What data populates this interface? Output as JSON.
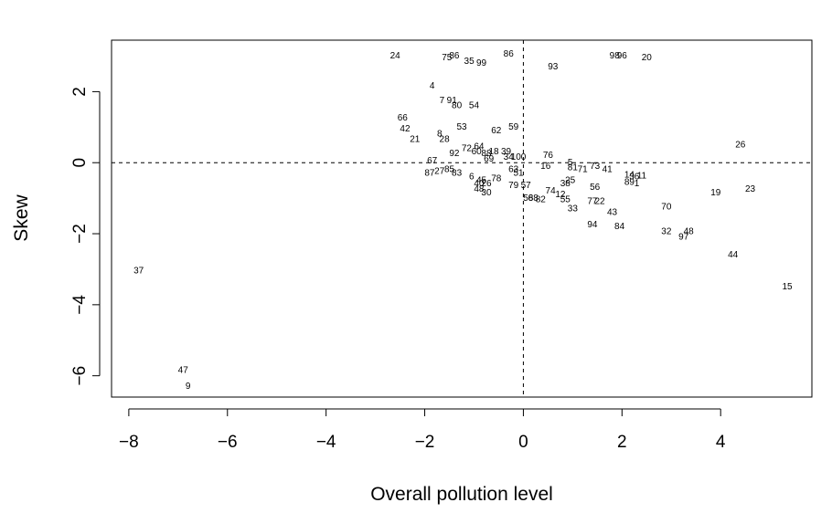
{
  "chart_data": {
    "type": "scatter",
    "title": "",
    "xlabel": "Overall pollution level",
    "ylabel": "Skew",
    "xlim": [
      -8.35,
      5.85
    ],
    "ylim": [
      -6.6,
      3.45
    ],
    "xticks": [
      -8,
      -6,
      -4,
      -2,
      0,
      2,
      4
    ],
    "yticks": [
      -6,
      -4,
      -2,
      0,
      2
    ],
    "xtick_labels": [
      "−8",
      "−6",
      "−4",
      "−2",
      "0",
      "2",
      "4"
    ],
    "ytick_labels": [
      "−6",
      "−4",
      "−2",
      "0",
      "2"
    ],
    "reference_lines": {
      "x": 0,
      "y": 0,
      "style": "dashed"
    },
    "grid": false,
    "legend": "none",
    "points": [
      {
        "label": "24",
        "x": -2.6,
        "y": 3.0
      },
      {
        "label": "75",
        "x": -1.55,
        "y": 2.95
      },
      {
        "label": "86",
        "x": -1.4,
        "y": 3.0
      },
      {
        "label": "35",
        "x": -1.1,
        "y": 2.85
      },
      {
        "label": "99",
        "x": -0.85,
        "y": 2.8
      },
      {
        "label": "86",
        "x": -0.3,
        "y": 3.05
      },
      {
        "label": "93",
        "x": 0.6,
        "y": 2.7
      },
      {
        "label": "98",
        "x": 1.85,
        "y": 3.0
      },
      {
        "label": "96",
        "x": 2.0,
        "y": 3.0
      },
      {
        "label": "20",
        "x": 2.5,
        "y": 2.95
      },
      {
        "label": "4",
        "x": -1.85,
        "y": 2.15
      },
      {
        "label": "7",
        "x": -1.65,
        "y": 1.75
      },
      {
        "label": "91",
        "x": -1.45,
        "y": 1.75
      },
      {
        "label": "80",
        "x": -1.35,
        "y": 1.6
      },
      {
        "label": "54",
        "x": -1.0,
        "y": 1.6
      },
      {
        "label": "66",
        "x": -2.45,
        "y": 1.25
      },
      {
        "label": "42",
        "x": -2.4,
        "y": 0.95
      },
      {
        "label": "21",
        "x": -2.2,
        "y": 0.65
      },
      {
        "label": "8",
        "x": -1.7,
        "y": 0.8
      },
      {
        "label": "28",
        "x": -1.6,
        "y": 0.65
      },
      {
        "label": "53",
        "x": -1.25,
        "y": 1.0
      },
      {
        "label": "62",
        "x": -0.55,
        "y": 0.9
      },
      {
        "label": "59",
        "x": -0.2,
        "y": 1.0
      },
      {
        "label": "92",
        "x": -1.4,
        "y": 0.25
      },
      {
        "label": "72",
        "x": -1.15,
        "y": 0.4
      },
      {
        "label": "64",
        "x": -0.9,
        "y": 0.45
      },
      {
        "label": "60",
        "x": -0.95,
        "y": 0.3
      },
      {
        "label": "88",
        "x": -0.75,
        "y": 0.25
      },
      {
        "label": "18",
        "x": -0.6,
        "y": 0.3
      },
      {
        "label": "39",
        "x": -0.35,
        "y": 0.3
      },
      {
        "label": "34",
        "x": -0.3,
        "y": 0.15
      },
      {
        "label": "100",
        "x": -0.1,
        "y": 0.15
      },
      {
        "label": "69",
        "x": -0.7,
        "y": 0.1
      },
      {
        "label": "67",
        "x": -1.85,
        "y": 0.05
      },
      {
        "label": "87",
        "x": -1.9,
        "y": -0.3
      },
      {
        "label": "27",
        "x": -1.7,
        "y": -0.25
      },
      {
        "label": "85",
        "x": -1.5,
        "y": -0.2
      },
      {
        "label": "83",
        "x": -1.35,
        "y": -0.3
      },
      {
        "label": "6",
        "x": -1.05,
        "y": -0.4
      },
      {
        "label": "45",
        "x": -0.85,
        "y": -0.5
      },
      {
        "label": "78",
        "x": -0.55,
        "y": -0.45
      },
      {
        "label": "40",
        "x": -0.9,
        "y": -0.6
      },
      {
        "label": "26",
        "x": -0.75,
        "y": -0.6
      },
      {
        "label": "48",
        "x": -0.9,
        "y": -0.75
      },
      {
        "label": "30",
        "x": -0.75,
        "y": -0.85
      },
      {
        "label": "79",
        "x": -0.2,
        "y": -0.65
      },
      {
        "label": "57",
        "x": 0.05,
        "y": -0.65
      },
      {
        "label": "63",
        "x": -0.2,
        "y": -0.2
      },
      {
        "label": "51",
        "x": -0.1,
        "y": -0.3
      },
      {
        "label": "76",
        "x": 0.5,
        "y": 0.2
      },
      {
        "label": "16",
        "x": 0.45,
        "y": -0.1
      },
      {
        "label": "5",
        "x": 0.95,
        "y": 0.0
      },
      {
        "label": "81",
        "x": 1.0,
        "y": -0.15
      },
      {
        "label": "71",
        "x": 1.2,
        "y": -0.2
      },
      {
        "label": "73",
        "x": 1.45,
        "y": -0.1
      },
      {
        "label": "41",
        "x": 1.7,
        "y": -0.2
      },
      {
        "label": "38",
        "x": 0.85,
        "y": -0.6
      },
      {
        "label": "25",
        "x": 0.95,
        "y": -0.5
      },
      {
        "label": "74",
        "x": 0.55,
        "y": -0.8
      },
      {
        "label": "12",
        "x": 0.75,
        "y": -0.9
      },
      {
        "label": "56",
        "x": 1.45,
        "y": -0.7
      },
      {
        "label": "14",
        "x": 2.15,
        "y": -0.35
      },
      {
        "label": "36",
        "x": 2.25,
        "y": -0.4
      },
      {
        "label": "11",
        "x": 2.4,
        "y": -0.38
      },
      {
        "label": "89",
        "x": 2.15,
        "y": -0.55
      },
      {
        "label": "1",
        "x": 2.3,
        "y": -0.6
      },
      {
        "label": "58",
        "x": 0.1,
        "y": -1.0
      },
      {
        "label": "68",
        "x": 0.2,
        "y": -1.0
      },
      {
        "label": "82",
        "x": 0.35,
        "y": -1.05
      },
      {
        "label": "55",
        "x": 0.85,
        "y": -1.05
      },
      {
        "label": "77",
        "x": 1.4,
        "y": -1.1
      },
      {
        "label": "22",
        "x": 1.55,
        "y": -1.1
      },
      {
        "label": "33",
        "x": 1.0,
        "y": -1.3
      },
      {
        "label": "43",
        "x": 1.8,
        "y": -1.4
      },
      {
        "label": "94",
        "x": 1.4,
        "y": -1.75
      },
      {
        "label": "84",
        "x": 1.95,
        "y": -1.8
      },
      {
        "label": "70",
        "x": 2.9,
        "y": -1.25
      },
      {
        "label": "32",
        "x": 2.9,
        "y": -1.95
      },
      {
        "label": "48",
        "x": 3.35,
        "y": -1.95
      },
      {
        "label": "97",
        "x": 3.25,
        "y": -2.1
      },
      {
        "label": "26",
        "x": 4.4,
        "y": 0.5
      },
      {
        "label": "19",
        "x": 3.9,
        "y": -0.85
      },
      {
        "label": "23",
        "x": 4.6,
        "y": -0.75
      },
      {
        "label": "44",
        "x": 4.25,
        "y": -2.6
      },
      {
        "label": "15",
        "x": 5.35,
        "y": -3.5
      },
      {
        "label": "37",
        "x": -7.8,
        "y": -3.05
      },
      {
        "label": "47",
        "x": -6.9,
        "y": -5.85
      },
      {
        "label": "9",
        "x": -6.8,
        "y": -6.3
      }
    ]
  }
}
